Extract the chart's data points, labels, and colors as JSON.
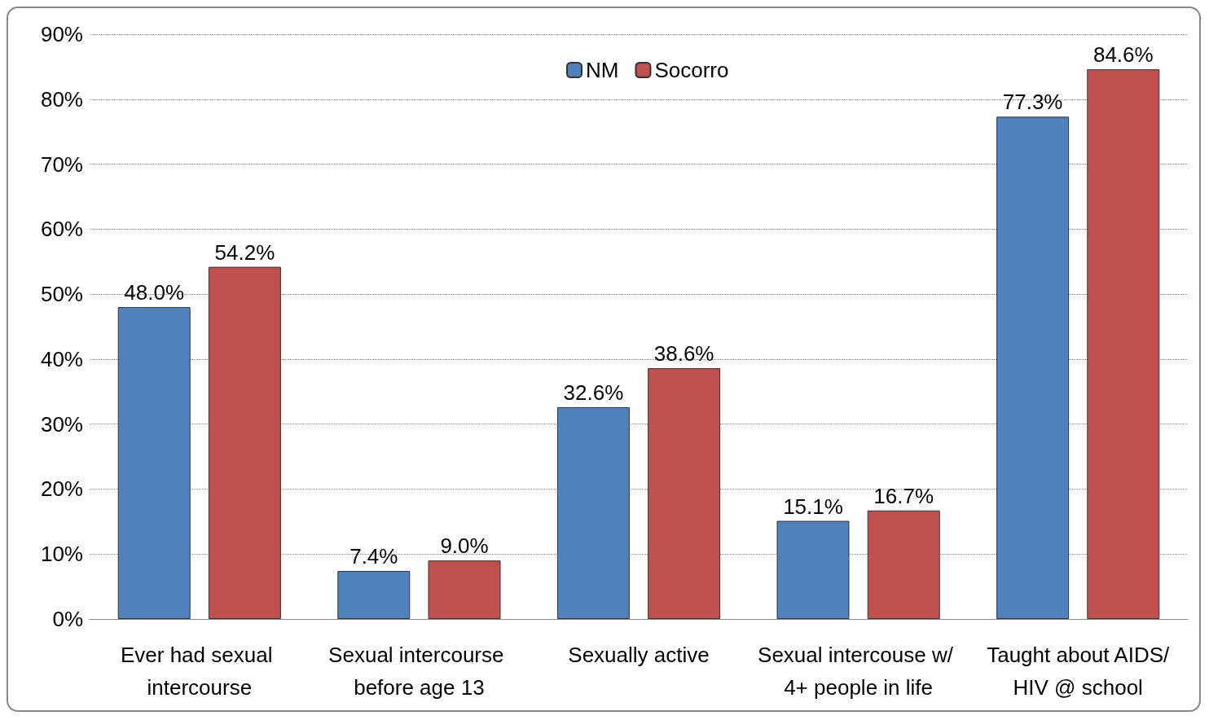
{
  "chart_data": {
    "type": "bar",
    "categories": [
      "Ever had sexual intercourse",
      "Sexual intercourse before age 13",
      "Sexually active",
      "Sexual intercouse w/ 4+ people in life",
      "Taught about AIDS/HIV @ school"
    ],
    "series": [
      {
        "name": "NM",
        "color": "#4f81bd",
        "values": [
          48.0,
          7.4,
          32.6,
          15.1,
          77.3
        ],
        "value_labels": [
          "48.0%",
          "7.4%",
          "32.6%",
          "15.1%",
          "77.3%"
        ]
      },
      {
        "name": "Socorro",
        "color": "#c0504d",
        "values": [
          54.2,
          9.0,
          38.6,
          16.7,
          84.6
        ],
        "value_labels": [
          "54.2%",
          "9.0%",
          "38.6%",
          "16.7%",
          "84.6%"
        ]
      }
    ],
    "ylim": [
      0,
      90
    ],
    "yticks": [
      {
        "value": 0,
        "label": "0%"
      },
      {
        "value": 10,
        "label": "10%"
      },
      {
        "value": 20,
        "label": "20%"
      },
      {
        "value": 30,
        "label": "30%"
      },
      {
        "value": 40,
        "label": "40%"
      },
      {
        "value": 50,
        "label": "50%"
      },
      {
        "value": 60,
        "label": "60%"
      },
      {
        "value": 70,
        "label": "70%"
      },
      {
        "value": 80,
        "label": "80%"
      },
      {
        "value": 90,
        "label": "90%"
      }
    ],
    "grid": "y",
    "legend": "top"
  }
}
